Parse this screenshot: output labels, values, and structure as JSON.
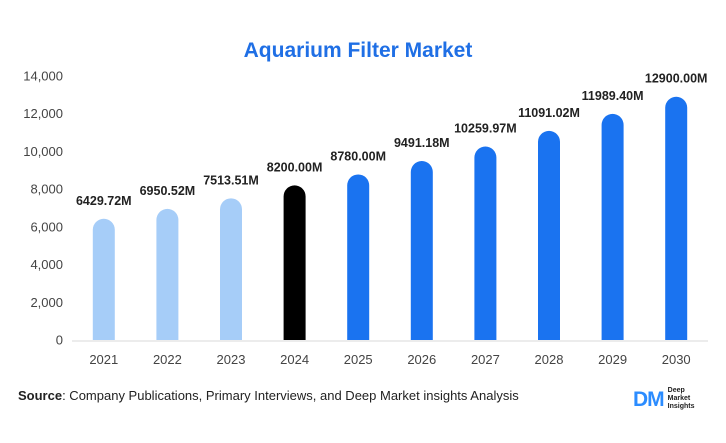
{
  "chart_data": {
    "type": "bar",
    "title": "Aquarium Filter Market",
    "categories": [
      "2021",
      "2022",
      "2023",
      "2024",
      "2025",
      "2026",
      "2027",
      "2028",
      "2029",
      "2030"
    ],
    "values": [
      6429.72,
      6950.52,
      7513.51,
      8200.0,
      8780.0,
      9491.18,
      10259.97,
      11091.02,
      11989.4,
      12900.0
    ],
    "data_labels": [
      "6429.72M",
      "6950.52M",
      "7513.51M",
      "8200.00M",
      "8780.00M",
      "9491.18M",
      "10259.97M",
      "11091.02M",
      "11989.40M",
      "12900.00M"
    ],
    "bar_colors": [
      "#a6cdf8",
      "#a6cdf8",
      "#a6cdf8",
      "#000000",
      "#1a73f0",
      "#1a73f0",
      "#1a73f0",
      "#1a73f0",
      "#1a73f0",
      "#1a73f0"
    ],
    "ylim": [
      0,
      14000
    ],
    "yticks": [
      "0",
      "2,000",
      "4,000",
      "6,000",
      "8,000",
      "10,000",
      "12,000",
      "14,000"
    ],
    "ytick_values": [
      0,
      2000,
      4000,
      6000,
      8000,
      10000,
      12000,
      14000
    ],
    "xlabel": "",
    "ylabel": "",
    "grid": false,
    "legend": "none"
  },
  "source": {
    "label": "Source",
    "text": ": Company Publications, Primary Interviews, and Deep Market insights Analysis"
  },
  "logo": {
    "mark_a": "D",
    "mark_b": "M",
    "line1": "Deep",
    "line2": "Market",
    "line3": "Insights"
  },
  "colors": {
    "title": "#1f6fe5",
    "historic": "#a6cdf8",
    "base_year": "#000000",
    "forecast": "#1a73f0"
  }
}
